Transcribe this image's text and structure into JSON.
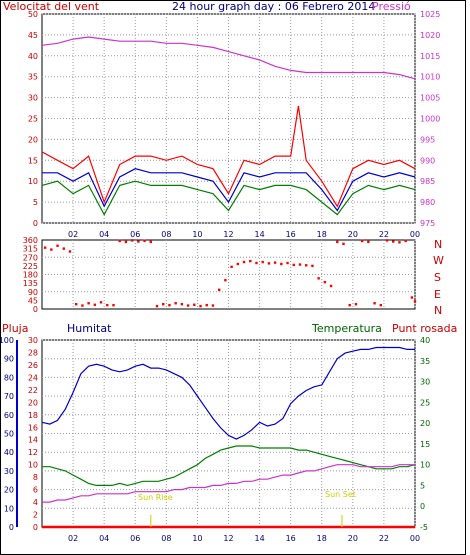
{
  "header": {
    "left_label": "Velocitat del vent",
    "title": "24 hour graph day : 06 Febrero 2014",
    "right_label": "Pressió"
  },
  "bottom_header": {
    "rain_label": "Pluja",
    "humidity_label": "Humitat",
    "temperature_label": "Temperatura",
    "dewpoint_label": "Punt rosada"
  },
  "x_ticks": [
    "02",
    "04",
    "06",
    "08",
    "10",
    "12",
    "14",
    "16",
    "18",
    "20",
    "22",
    "00"
  ],
  "direction_labels": [
    "N",
    "W",
    "S",
    "E",
    "N"
  ],
  "annotations": {
    "sunrise": "Sun Rise",
    "sunset": "Sun Set"
  },
  "colors": {
    "wind_gust": "#ff0000",
    "wind_avg": "#008000",
    "wind_mean": "#0000cc",
    "pressure": "#cc33cc",
    "direction": "#ff0000",
    "humidity": "#0000cc",
    "temperature": "#008000",
    "dewpoint": "#cc33cc",
    "rain": "#ff0000",
    "sun": "#cccc00",
    "grid": "#9999aa",
    "frame": "#000000"
  },
  "chart_data": [
    {
      "type": "line",
      "title": "24 hour graph day : 06 Febrero 2014",
      "x_unit": "hour",
      "xlim": [
        0,
        24
      ],
      "ylim_left": [
        0,
        50
      ],
      "ylim_right": [
        975,
        1025
      ],
      "left_ticks": [
        0,
        5,
        10,
        15,
        20,
        25,
        30,
        35,
        40,
        45,
        50
      ],
      "right_ticks": [
        975,
        980,
        985,
        990,
        995,
        1000,
        1005,
        1010,
        1015,
        1020,
        1025
      ],
      "grid": true,
      "series": [
        {
          "name": "Velocitat del vent",
          "axis": "left",
          "x": [
            0,
            1,
            2,
            3,
            4,
            5,
            6,
            7,
            8,
            9,
            10,
            11,
            12,
            13,
            14,
            15,
            16,
            16.5,
            17,
            18,
            19,
            20,
            21,
            22,
            23,
            24
          ],
          "y": [
            17,
            15,
            13,
            16,
            5,
            14,
            16,
            16,
            15,
            16,
            14,
            13,
            7,
            15,
            14,
            16,
            16,
            28,
            15,
            10,
            4,
            13,
            15,
            14,
            15,
            13
          ]
        },
        {
          "name": "wind average",
          "x": [
            0,
            1,
            2,
            3,
            4,
            5,
            6,
            7,
            8,
            9,
            10,
            11,
            12,
            13,
            14,
            15,
            16,
            17,
            18,
            19,
            20,
            21,
            22,
            23,
            24
          ],
          "y": [
            9,
            10,
            7,
            9,
            2,
            9,
            10,
            9,
            9,
            9,
            8,
            7,
            3,
            9,
            8,
            9,
            9,
            8,
            5,
            2,
            7,
            9,
            8,
            9,
            8
          ]
        },
        {
          "name": "wind mean",
          "x": [
            0,
            1,
            2,
            3,
            4,
            5,
            6,
            7,
            8,
            9,
            10,
            11,
            12,
            13,
            14,
            15,
            16,
            17,
            18,
            19,
            20,
            21,
            22,
            23,
            24
          ],
          "y": [
            12,
            12,
            10,
            12,
            4,
            11,
            13,
            12,
            12,
            12,
            11,
            10,
            5,
            12,
            11,
            12,
            12,
            12,
            8,
            3,
            10,
            12,
            11,
            12,
            11
          ]
        },
        {
          "name": "Pressió",
          "axis": "right",
          "x": [
            0,
            1,
            2,
            3,
            4,
            5,
            6,
            7,
            8,
            9,
            10,
            11,
            12,
            13,
            14,
            15,
            16,
            17,
            18,
            19,
            20,
            21,
            22,
            23,
            24
          ],
          "y": [
            1017.5,
            1018,
            1019,
            1019.5,
            1019,
            1018.5,
            1018.5,
            1018.5,
            1018,
            1018,
            1017.5,
            1017,
            1016,
            1015,
            1014,
            1012.5,
            1011.5,
            1011,
            1011,
            1011,
            1011,
            1011,
            1011,
            1010.5,
            1009.5
          ]
        }
      ]
    },
    {
      "type": "scatter",
      "xlim": [
        0,
        24
      ],
      "ylim": [
        0,
        360
      ],
      "y_ticks": [
        0,
        45,
        90,
        135,
        180,
        225,
        270,
        315,
        360
      ],
      "grid": true,
      "series": [
        {
          "name": "wind direction",
          "points": [
            [
              0.2,
              320
            ],
            [
              0.6,
              310
            ],
            [
              1.0,
              330
            ],
            [
              1.4,
              315
            ],
            [
              1.8,
              300
            ],
            [
              2.2,
              25
            ],
            [
              2.6,
              18
            ],
            [
              3.0,
              30
            ],
            [
              3.4,
              22
            ],
            [
              3.8,
              35
            ],
            [
              4.2,
              20
            ],
            [
              4.6,
              20
            ],
            [
              5.0,
              355
            ],
            [
              5.4,
              350
            ],
            [
              5.8,
              358
            ],
            [
              6.2,
              352
            ],
            [
              6.6,
              356
            ],
            [
              7.0,
              350
            ],
            [
              7.4,
              15
            ],
            [
              7.8,
              25
            ],
            [
              8.2,
              20
            ],
            [
              8.6,
              30
            ],
            [
              9.0,
              25
            ],
            [
              9.4,
              18
            ],
            [
              9.8,
              22
            ],
            [
              10.2,
              15
            ],
            [
              10.6,
              20
            ],
            [
              11.0,
              18
            ],
            [
              11.4,
              100
            ],
            [
              11.8,
              150
            ],
            [
              12.2,
              220
            ],
            [
              12.6,
              235
            ],
            [
              13.0,
              245
            ],
            [
              13.4,
              250
            ],
            [
              13.8,
              240
            ],
            [
              14.2,
              245
            ],
            [
              14.6,
              238
            ],
            [
              15.0,
              242
            ],
            [
              15.4,
              235
            ],
            [
              15.8,
              240
            ],
            [
              16.2,
              230
            ],
            [
              16.6,
              232
            ],
            [
              17.0,
              228
            ],
            [
              17.4,
              225
            ],
            [
              17.8,
              160
            ],
            [
              18.2,
              140
            ],
            [
              18.6,
              120
            ],
            [
              19.0,
              350
            ],
            [
              19.4,
              340
            ],
            [
              19.8,
              20
            ],
            [
              20.2,
              25
            ],
            [
              20.6,
              355
            ],
            [
              21.0,
              350
            ],
            [
              21.4,
              30
            ],
            [
              21.8,
              20
            ],
            [
              22.2,
              358
            ],
            [
              22.6,
              352
            ],
            [
              23.0,
              348
            ],
            [
              23.4,
              355
            ],
            [
              23.8,
              60
            ],
            [
              24.0,
              40
            ]
          ]
        }
      ]
    },
    {
      "type": "line",
      "xlim": [
        0,
        24
      ],
      "ylim_left": [
        0,
        100
      ],
      "ylim_left2": [
        0,
        30
      ],
      "ylim_right": [
        -5,
        40
      ],
      "left_ticks": [
        0,
        10,
        20,
        30,
        40,
        50,
        60,
        70,
        80,
        90,
        100
      ],
      "left2_ticks": [
        0,
        2,
        4,
        6,
        8,
        10,
        12,
        14,
        16,
        18,
        20,
        22,
        24,
        26,
        28,
        30
      ],
      "right_ticks": [
        -5,
        0,
        5,
        10,
        15,
        20,
        25,
        30,
        35,
        40
      ],
      "grid": true,
      "series": [
        {
          "name": "Humitat",
          "axis": "left",
          "x": [
            0,
            0.5,
            1,
            1.5,
            2,
            2.5,
            3,
            3.5,
            4,
            4.5,
            5,
            5.5,
            6,
            6.5,
            7,
            7.5,
            8,
            8.5,
            9,
            9.5,
            10,
            10.5,
            11,
            11.5,
            12,
            12.5,
            13,
            13.5,
            14,
            14.5,
            15,
            15.5,
            16,
            16.5,
            17,
            17.5,
            18,
            18.5,
            19,
            19.5,
            20,
            20.5,
            21,
            21.5,
            22,
            22.5,
            23,
            23.5,
            24
          ],
          "y": [
            56,
            55,
            57,
            63,
            72,
            82,
            86,
            87,
            86,
            84,
            83,
            84,
            86,
            87,
            85,
            85,
            84,
            82,
            80,
            76,
            70,
            64,
            58,
            53,
            49,
            47,
            49,
            52,
            56,
            54,
            55,
            58,
            66,
            70,
            73,
            75,
            76,
            83,
            90,
            93,
            94,
            95,
            95,
            96,
            96,
            96,
            96,
            95,
            95
          ]
        },
        {
          "name": "Temperatura",
          "axis": "right",
          "x": [
            0,
            0.5,
            1,
            1.5,
            2,
            2.5,
            3,
            3.5,
            4,
            4.5,
            5,
            5.5,
            6,
            6.5,
            7,
            7.5,
            8,
            8.5,
            9,
            9.5,
            10,
            10.5,
            11,
            11.5,
            12,
            12.5,
            13,
            13.5,
            14,
            14.5,
            15,
            15.5,
            16,
            16.5,
            17,
            17.5,
            18,
            18.5,
            19,
            19.5,
            20,
            20.5,
            21,
            21.5,
            22,
            22.5,
            23,
            23.5,
            24
          ],
          "y": [
            9.5,
            9.5,
            9.0,
            8.5,
            7.5,
            6.5,
            5.5,
            5.0,
            5.0,
            5.0,
            5.5,
            5.0,
            5.5,
            6.0,
            6.0,
            6.0,
            6.5,
            7.0,
            8.0,
            9.0,
            10.0,
            11.5,
            12.5,
            13.5,
            14.0,
            14.5,
            14.5,
            14.5,
            14.0,
            14.0,
            14.0,
            14.0,
            14.0,
            13.5,
            13.5,
            13.0,
            12.5,
            12.0,
            11.5,
            11.0,
            10.5,
            10.0,
            9.5,
            9.0,
            9.0,
            9.0,
            9.5,
            9.5,
            10.0
          ]
        },
        {
          "name": "Punt rosada",
          "axis": "right",
          "x": [
            0,
            0.5,
            1,
            1.5,
            2,
            2.5,
            3,
            3.5,
            4,
            4.5,
            5,
            5.5,
            6,
            6.5,
            7,
            7.5,
            8,
            8.5,
            9,
            9.5,
            10,
            10.5,
            11,
            11.5,
            12,
            12.5,
            13,
            13.5,
            14,
            14.5,
            15,
            15.5,
            16,
            16.5,
            17,
            17.5,
            18,
            18.5,
            19,
            19.5,
            20,
            20.5,
            21,
            21.5,
            22,
            22.5,
            23,
            23.5,
            24
          ],
          "y": [
            1.0,
            1.0,
            1.5,
            1.5,
            2.0,
            2.5,
            2.5,
            3.0,
            3.0,
            3.0,
            3.0,
            3.0,
            3.5,
            3.5,
            3.5,
            3.5,
            3.5,
            4.0,
            4.0,
            4.5,
            4.5,
            4.5,
            5.0,
            5.0,
            5.5,
            5.5,
            6.0,
            6.0,
            6.5,
            6.5,
            7.0,
            7.5,
            7.5,
            8.0,
            8.5,
            8.5,
            9.0,
            9.5,
            10.0,
            10.0,
            10.0,
            9.5,
            9.5,
            9.5,
            9.5,
            9.5,
            10.0,
            10.0,
            10.0
          ]
        },
        {
          "name": "Pluja",
          "axis": "left2",
          "x": [
            0,
            24
          ],
          "y": [
            0,
            0
          ]
        }
      ],
      "annotations": [
        {
          "label": "Sun Rise",
          "x": 7.0
        },
        {
          "label": "Sun Set",
          "x": 19.3
        }
      ]
    }
  ]
}
